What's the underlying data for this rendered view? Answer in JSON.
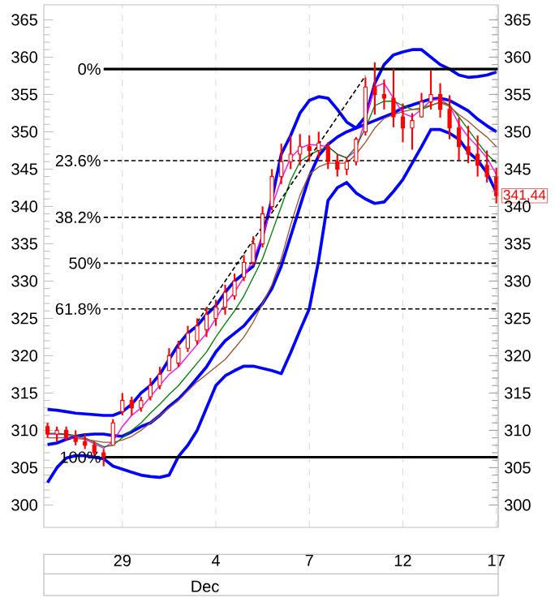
{
  "chart_data": {
    "type": "candlestick",
    "xlabel": "Dec",
    "color": "#ff0000",
    "categories": [
      null,
      null,
      null,
      null,
      null,
      null,
      null,
      null,
      "29",
      null,
      null,
      null,
      null,
      null,
      null,
      null,
      null,
      null,
      "4",
      null,
      null,
      null,
      null,
      null,
      null,
      null,
      null,
      null,
      "7",
      null,
      null,
      null,
      null,
      null,
      null,
      null,
      null,
      null,
      "12",
      null,
      null,
      null,
      null,
      null,
      null,
      null,
      null,
      null,
      "17"
    ],
    "ohlc": [
      [
        310.5,
        311,
        309,
        309.5
      ],
      [
        309.5,
        310.5,
        308.5,
        310
      ],
      [
        310,
        310.5,
        308.6,
        309
      ],
      [
        309,
        310,
        308,
        308.5
      ],
      [
        308.5,
        309.5,
        307.5,
        308
      ],
      [
        308,
        308.5,
        306.5,
        307
      ],
      [
        307,
        307.5,
        305.2,
        306.5
      ],
      [
        308,
        311.5,
        308,
        311
      ],
      [
        312.5,
        315,
        312,
        314
      ],
      [
        314,
        314.5,
        312,
        313
      ],
      [
        313,
        314.5,
        312.5,
        314
      ],
      [
        314.5,
        317,
        314,
        316
      ],
      [
        316,
        318.5,
        315.5,
        317.5
      ],
      [
        318,
        321,
        318,
        320
      ],
      [
        319,
        322,
        318.5,
        321
      ],
      [
        321,
        324,
        320.5,
        323
      ],
      [
        322,
        325,
        321.5,
        324
      ],
      [
        323.5,
        326.5,
        322.5,
        325.5
      ],
      [
        325,
        327.5,
        324,
        326.5
      ],
      [
        326.5,
        329.5,
        325.5,
        328.5
      ],
      [
        328,
        331,
        327.5,
        330
      ],
      [
        330.5,
        333.5,
        330,
        332.5
      ],
      [
        332.5,
        336,
        332,
        335
      ],
      [
        335,
        340,
        334.5,
        339
      ],
      [
        340,
        345,
        339.5,
        344
      ],
      [
        344,
        348.4,
        343,
        346
      ],
      [
        346,
        349.5,
        345,
        347
      ],
      [
        347,
        349.7,
        345.5,
        348
      ],
      [
        348,
        349.5,
        346,
        347.5
      ],
      [
        347.5,
        350,
        346.5,
        348.5
      ],
      [
        348,
        348.6,
        345,
        346
      ],
      [
        346,
        347,
        344,
        345
      ],
      [
        345,
        346.5,
        344.2,
        346
      ],
      [
        346,
        349.3,
        345.5,
        349
      ],
      [
        350,
        357.3,
        349.5,
        356
      ],
      [
        356,
        359.3,
        352.3,
        355
      ],
      [
        355,
        357,
        353,
        354.5
      ],
      [
        354.5,
        358.4,
        350.6,
        352
      ],
      [
        352,
        353.8,
        348.6,
        350.5
      ],
      [
        350.5,
        352.5,
        347.6,
        351.5
      ],
      [
        352,
        355.2,
        351.9,
        354
      ],
      [
        354,
        358.2,
        353,
        355
      ],
      [
        355,
        356.5,
        351.9,
        353
      ],
      [
        353,
        354.9,
        349,
        350.5
      ],
      [
        350.5,
        351.9,
        346.2,
        348
      ],
      [
        348,
        350.8,
        345.8,
        347
      ],
      [
        347,
        349.5,
        344,
        345.5
      ],
      [
        345.5,
        347.5,
        343.2,
        344
      ],
      [
        344,
        345.2,
        340.4,
        341.44
      ]
    ],
    "series": [
      {
        "type": "line",
        "color": "#0000ff",
        "values": [
          312.8,
          312.7,
          312.5,
          312.3,
          312.2,
          312.1,
          312,
          312,
          312.5,
          313.5,
          315,
          316,
          317.5,
          319.5,
          321.5,
          323,
          324,
          325.5,
          326.7,
          328.5,
          330,
          331,
          332,
          336,
          341,
          347,
          349.5,
          352.5,
          354.2,
          354.7,
          354.5,
          353,
          351.3,
          350.5,
          352,
          356.5,
          359,
          360.3,
          360.7,
          361,
          361,
          360,
          359,
          358.4,
          357.6,
          357.3,
          357.4,
          357.6,
          358
        ]
      },
      {
        "type": "line",
        "color": "#0000ff",
        "values": [
          308.1,
          308.3,
          308.8,
          309.2,
          309.4,
          309.5,
          309.5,
          309.3,
          309.2,
          309.8,
          310.5,
          311,
          312,
          313.2,
          314.2,
          315.5,
          317,
          318.5,
          320.5,
          322,
          323,
          324,
          325.5,
          327,
          329,
          332,
          336,
          340,
          344,
          346.8,
          348.3,
          349.3,
          350,
          350.5,
          351,
          351.5,
          352,
          352.5,
          353.2,
          353.6,
          354,
          354.4,
          354.5,
          354.2,
          353.5,
          352.8,
          351.7,
          350.8,
          350
        ]
      },
      {
        "type": "line",
        "color": "#0000ff",
        "values": [
          303,
          305,
          306.3,
          306.6,
          306.6,
          306.4,
          306.2,
          305.2,
          304.8,
          304.4,
          304,
          303.8,
          303.7,
          304,
          306.5,
          308,
          310,
          313,
          316,
          317.3,
          318,
          318.6,
          318.6,
          318.3,
          318,
          317.6,
          320.4,
          323.4,
          326.3,
          332.8,
          340.8,
          342.5,
          343.2,
          341.8,
          341,
          340.4,
          340.6,
          342,
          343.6,
          345.8,
          348,
          350.3,
          350.3,
          349.8,
          349,
          347.3,
          346.2,
          344.5,
          341.9
        ]
      },
      {
        "type": "line",
        "color": "#ff00ff",
        "values": [
          309.5,
          309.5,
          309.4,
          309.2,
          308.8,
          308.2,
          307.6,
          308.5,
          310.5,
          312,
          313,
          314.5,
          316,
          317.5,
          318.5,
          320,
          321.5,
          323,
          325,
          327,
          328.5,
          330.5,
          333,
          336,
          340,
          343.6,
          346.5,
          347.8,
          348.3,
          348.2,
          348,
          347,
          346.5,
          347.5,
          null,
          356,
          356.5,
          354.5,
          352.5,
          352,
          353,
          354.2,
          354.4,
          353.5,
          351,
          349.3,
          348,
          346.5,
          344.3
        ]
      },
      {
        "type": "line",
        "color": "#008000",
        "values": [
          309.6,
          309.6,
          309.5,
          309.3,
          309,
          308.4,
          307.8,
          308,
          309,
          310,
          311,
          312.3,
          313.5,
          314.8,
          316,
          317.5,
          319,
          320.5,
          322.5,
          324.3,
          326,
          328,
          330.5,
          333,
          336.5,
          340,
          343.5,
          346,
          346.9,
          347.5,
          348,
          347,
          346.5,
          348,
          350.5,
          353.5,
          354.1,
          354.1,
          353.5,
          353,
          353,
          353.5,
          354,
          353.6,
          352,
          350.3,
          348.6,
          347,
          345.8
        ]
      },
      {
        "type": "line",
        "color": "#a0522d",
        "values": [
          309,
          309,
          309,
          308.9,
          308.8,
          308.6,
          308.4,
          308.4,
          308.7,
          309.2,
          310,
          311,
          312,
          313,
          314,
          315.3,
          316.5,
          317.5,
          318.5,
          319.5,
          321,
          322.5,
          324.5,
          327,
          329.5,
          333,
          337.5,
          341.5,
          344.3,
          345.3,
          345.8,
          345.8,
          345.8,
          347,
          348.6,
          350.5,
          351.8,
          352.3,
          352.7,
          353,
          353.2,
          353.6,
          353.9,
          353.4,
          352.3,
          351.4,
          350.3,
          349.3,
          348
        ]
      },
      {
        "type": "line",
        "color": "#000000",
        "line_style": "dashed",
        "values": [
          null,
          null,
          null,
          null,
          null,
          null,
          null,
          null,
          null,
          null,
          null,
          null,
          null,
          null,
          null,
          null,
          324.5,
          null,
          null,
          null,
          null,
          null,
          null,
          null,
          null,
          null,
          null,
          null,
          null,
          null,
          null,
          null,
          null,
          null,
          357.5,
          null,
          null,
          null,
          null,
          null,
          null,
          null,
          null,
          null,
          null,
          null,
          null,
          null,
          null
        ]
      }
    ],
    "ylim": [
      297,
      367
    ],
    "yticks": [
      300,
      305,
      310,
      315,
      320,
      325,
      330,
      335,
      340,
      345,
      350,
      355,
      360,
      365
    ],
    "y2lim": [
      297,
      367
    ],
    "y2ticks": [
      300,
      305,
      310,
      315,
      320,
      325,
      330,
      335,
      340,
      345,
      350,
      355,
      360,
      365
    ],
    "grid": "x",
    "ref_lines": [
      {
        "axis": "y",
        "value": 358.4,
        "line_style": "solid",
        "color": "#000000"
      },
      {
        "axis": "y",
        "value": 346.128,
        "line_style": "dashed",
        "color": "#000000"
      },
      {
        "axis": "y",
        "value": 338.536,
        "line_style": "dashed",
        "color": "#000000"
      },
      {
        "axis": "y",
        "value": 332.4,
        "line_style": "dashed",
        "color": "#000000"
      },
      {
        "axis": "y",
        "value": 326.264,
        "line_style": "dashed",
        "color": "#000000"
      },
      {
        "axis": "y",
        "value": 306.4,
        "line_style": "solid",
        "color": "#000000"
      }
    ],
    "annotations": [
      {
        "text": "341,44",
        "x": "17",
        "y": 341.44
      },
      "0%",
      "23.6%",
      "38.2%",
      "50%",
      "61.8%",
      "100%"
    ]
  }
}
